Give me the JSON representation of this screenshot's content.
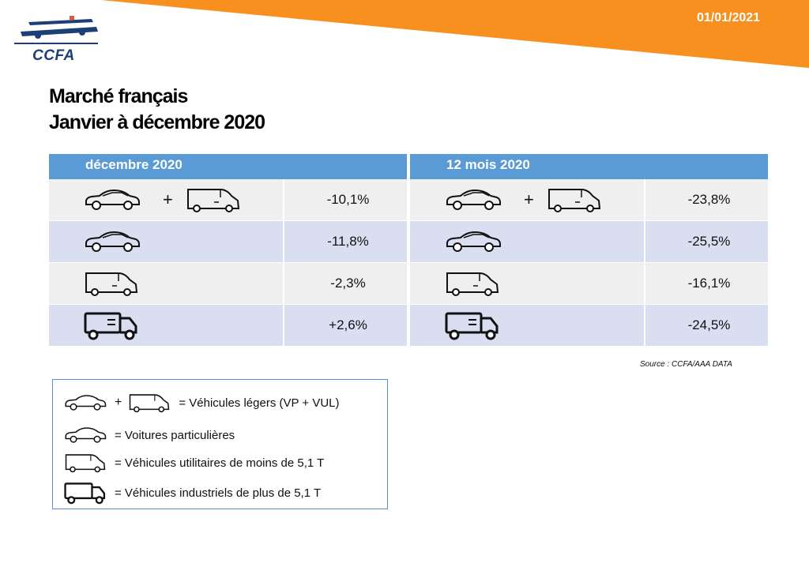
{
  "header": {
    "date": "01/01/2021",
    "logo_text": "CCFA",
    "accent_color": "#f7901e"
  },
  "title": {
    "line1": "Marché français",
    "line2": "Janvier à décembre 2020"
  },
  "panels": [
    {
      "heading": "décembre 2020",
      "rows": [
        {
          "icons": [
            "car-icon",
            "van-icon"
          ],
          "value": "-10,1%"
        },
        {
          "icons": [
            "car-icon"
          ],
          "value": "-11,8%"
        },
        {
          "icons": [
            "van-icon"
          ],
          "value": "-2,3%"
        },
        {
          "icons": [
            "truck-icon"
          ],
          "value": "+2,6%"
        }
      ]
    },
    {
      "heading": "12 mois 2020",
      "rows": [
        {
          "icons": [
            "car-icon",
            "van-icon"
          ],
          "value": "-23,8%"
        },
        {
          "icons": [
            "car-icon"
          ],
          "value": "-25,5%"
        },
        {
          "icons": [
            "van-icon"
          ],
          "value": "-16,1%"
        },
        {
          "icons": [
            "truck-icon"
          ],
          "value": "-24,5%"
        }
      ]
    }
  ],
  "plus_sign": "+",
  "source": "Source : CCFA/AAA DATA",
  "legend": [
    {
      "icons": [
        "car-icon",
        "van-icon"
      ],
      "text": "= Véhicules légers (VP + VUL)"
    },
    {
      "icons": [
        "car-icon"
      ],
      "text": "= Voitures particulières"
    },
    {
      "icons": [
        "van-icon"
      ],
      "text": "= Véhicules utilitaires de moins de 5,1 T"
    },
    {
      "icons": [
        "truck-icon"
      ],
      "text": "= Véhicules industriels de plus de 5,1 T"
    }
  ],
  "colors": {
    "header_blue": "#5b9bd5",
    "row_light": "#efefef",
    "row_blue": "#d9def1"
  }
}
